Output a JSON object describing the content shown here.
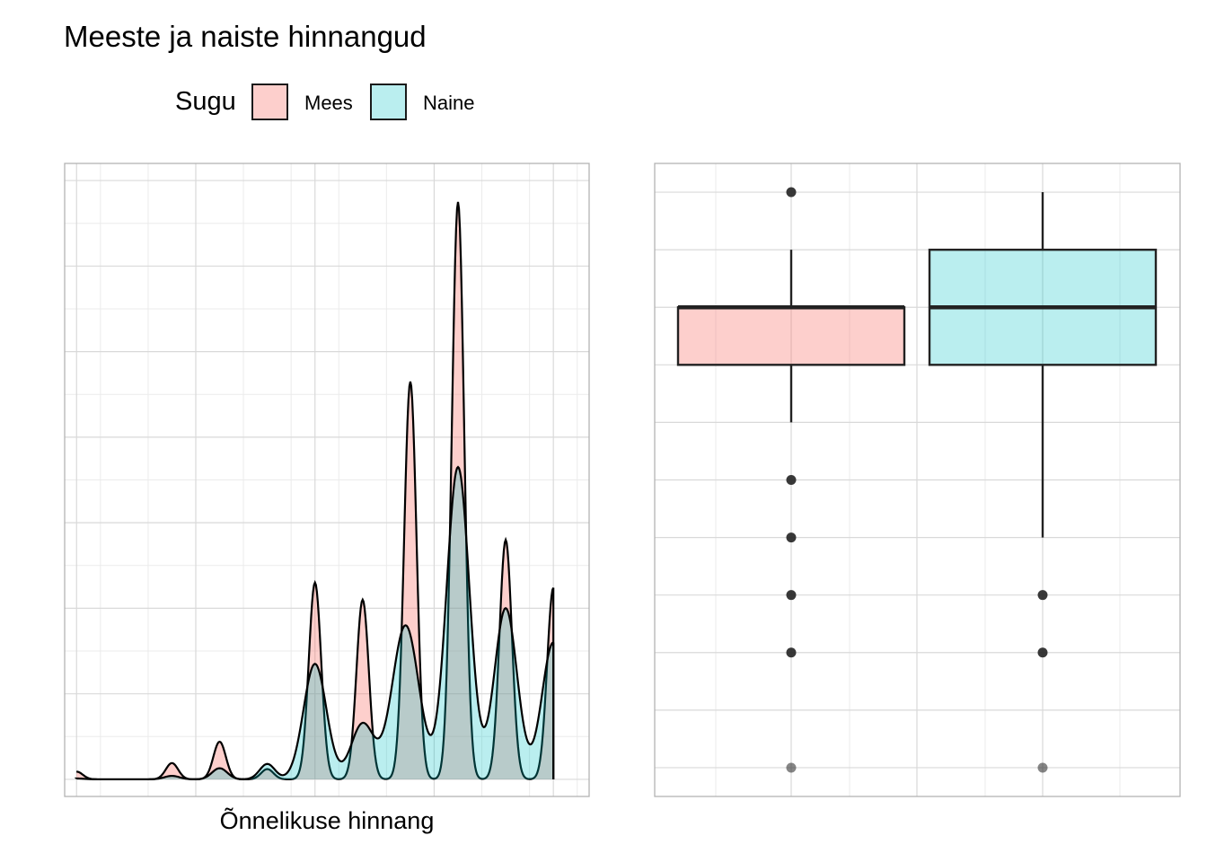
{
  "title": "Meeste ja naiste hinnangud",
  "legend": {
    "title": "Sugu",
    "entries": [
      {
        "name": "Mees",
        "color": "#f8766d"
      },
      {
        "name": "Naine",
        "color": "#00bfc4"
      }
    ]
  },
  "chart_data": [
    {
      "type": "area",
      "subtype": "density",
      "xlabel": "Õnnelikuse hinnang",
      "ylabel": "",
      "xlim": [
        -0.25,
        10.75
      ],
      "ylim": [
        -0.02,
        0.72
      ],
      "grid": true,
      "legend_position": "top",
      "series": [
        {
          "name": "Mees",
          "color": "#f8766d",
          "fill_opacity": 0.35,
          "peaks": [
            {
              "x": 0,
              "y": 0.009,
              "w": 0.13
            },
            {
              "x": 2,
              "y": 0.019,
              "w": 0.13
            },
            {
              "x": 3,
              "y": 0.044,
              "w": 0.13
            },
            {
              "x": 4,
              "y": 0.012,
              "w": 0.13
            },
            {
              "x": 5,
              "y": 0.23,
              "w": 0.13
            },
            {
              "x": 6,
              "y": 0.21,
              "w": 0.13
            },
            {
              "x": 7,
              "y": 0.465,
              "w": 0.13
            },
            {
              "x": 8,
              "y": 0.675,
              "w": 0.13
            },
            {
              "x": 9,
              "y": 0.28,
              "w": 0.13
            },
            {
              "x": 10,
              "y": 0.224,
              "w": 0.13
            }
          ]
        },
        {
          "name": "Naine",
          "color": "#00bfc4",
          "fill_opacity": 0.27,
          "peaks": [
            {
              "x": 0,
              "y": 0.001,
              "w": 0.16
            },
            {
              "x": 2,
              "y": 0.004,
              "w": 0.16
            },
            {
              "x": 3,
              "y": 0.013,
              "w": 0.16
            },
            {
              "x": 4,
              "y": 0.018,
              "w": 0.16
            },
            {
              "x": 5,
              "y": 0.135,
              "w": 0.24
            },
            {
              "x": 6,
              "y": 0.065,
              "w": 0.24
            },
            {
              "x": 6.9,
              "y": 0.18,
              "w": 0.28
            },
            {
              "x": 8,
              "y": 0.365,
              "w": 0.24
            },
            {
              "x": 9,
              "y": 0.2,
              "w": 0.24
            },
            {
              "x": 10,
              "y": 0.16,
              "w": 0.24
            }
          ]
        }
      ]
    },
    {
      "type": "box",
      "xlabel": "",
      "ylabel": "",
      "categories": [
        "Mees",
        "Naine"
      ],
      "ylim": [
        -0.5,
        10.5
      ],
      "grid": true,
      "series": [
        {
          "name": "Mees",
          "color": "#f8766d",
          "fill_opacity": 0.35,
          "whisker_low": 6,
          "q1": 7,
          "median": 8,
          "q3": 8,
          "whisker_high": 9,
          "outliers": [
            10,
            5,
            4,
            3,
            2,
            0
          ]
        },
        {
          "name": "Naine",
          "color": "#00bfc4",
          "fill_opacity": 0.27,
          "whisker_low": 4,
          "q1": 7,
          "median": 8,
          "q3": 9,
          "whisker_high": 10,
          "outliers": [
            3,
            2,
            0
          ]
        }
      ]
    }
  ]
}
